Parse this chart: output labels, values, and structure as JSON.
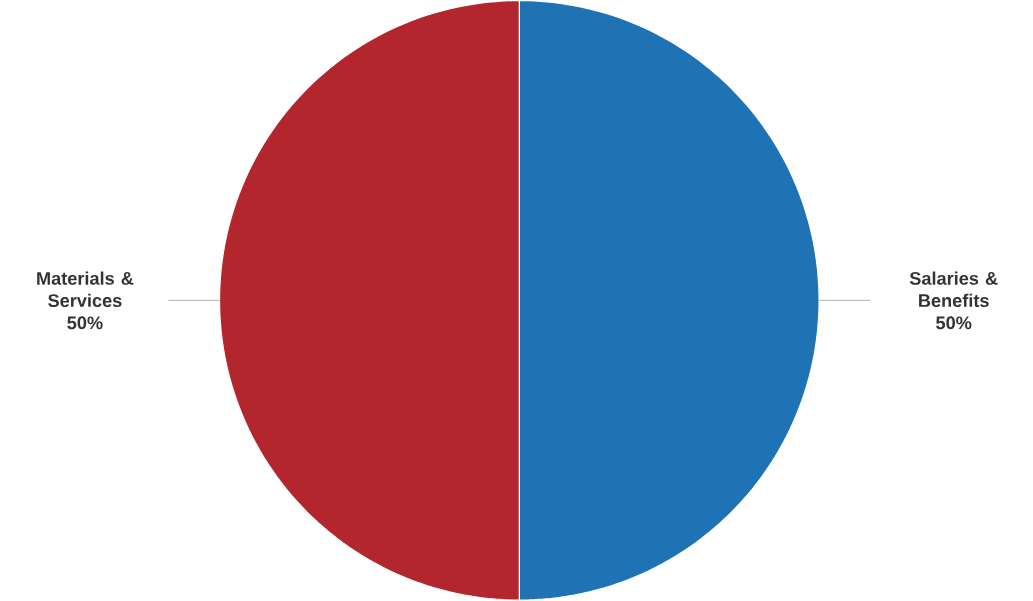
{
  "chart_data": {
    "type": "pie",
    "categories": [
      "Salaries & Benefits",
      "Materials & Services"
    ],
    "values": [
      50,
      50
    ],
    "colors": [
      "#1f73b5",
      "#b3262d"
    ],
    "value_labels": [
      "50%",
      "50%"
    ]
  }
}
